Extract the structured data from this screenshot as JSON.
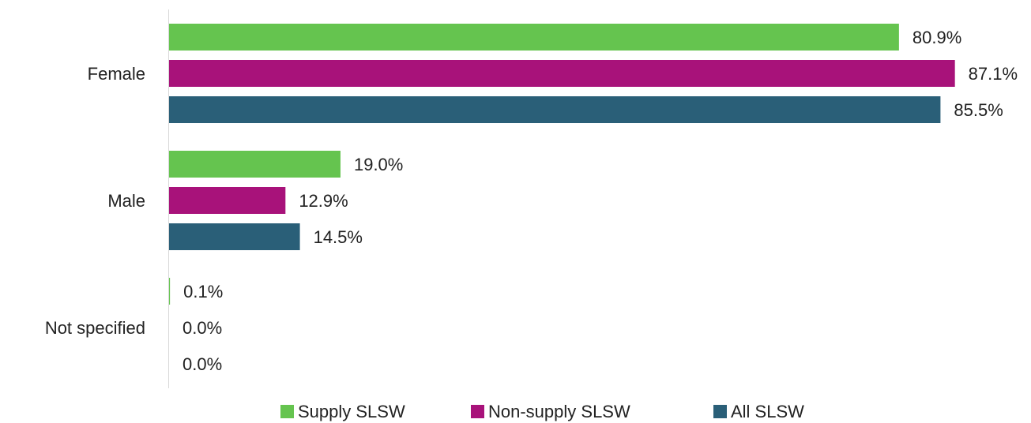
{
  "chart_data": {
    "type": "bar",
    "orientation": "horizontal",
    "categories": [
      "Female",
      "Male",
      "Not specified"
    ],
    "series": [
      {
        "name": "Supply SLSW",
        "color": "#65c44f",
        "values": [
          80.9,
          19.0,
          0.1
        ],
        "value_labels": [
          "80.9%",
          "19.0%",
          "0.1%"
        ]
      },
      {
        "name": "Non-supply SLSW",
        "color": "#a8127a",
        "values": [
          87.1,
          12.9,
          0.0
        ],
        "value_labels": [
          "87.1%",
          "12.9%",
          "0.0%"
        ]
      },
      {
        "name": "All SLSW",
        "color": "#2a5f78",
        "values": [
          85.5,
          14.5,
          0.0
        ],
        "value_labels": [
          "85.5%",
          "14.5%",
          "0.0%"
        ]
      }
    ],
    "legend": "bottom"
  }
}
